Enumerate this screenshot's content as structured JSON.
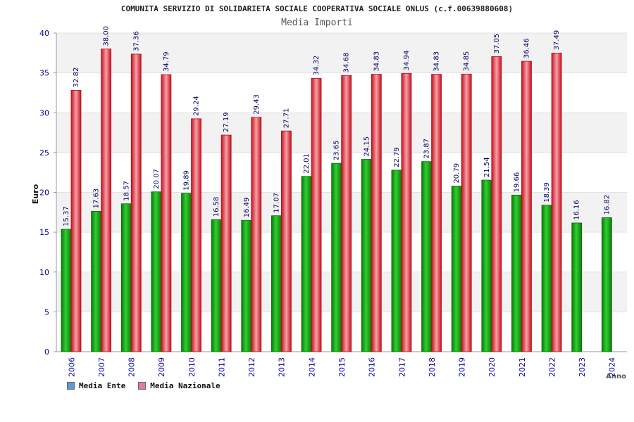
{
  "title": "COMUNITA SERVIZIO DI SOLIDARIETA SOCIALE COOPERATIVA SOCIALE ONLUS (c.f.00639880608)",
  "subtitle": "Media Importi",
  "colors": {
    "ente": "#1fa31f",
    "nazionale": "#e8303a",
    "legend_ente": "#5b9bd5",
    "legend_nazionale": "#e07aa8",
    "axis_text": "#0000aa",
    "band": "#f2f2f2"
  },
  "chart_data": {
    "type": "bar",
    "title": "COMUNITA SERVIZIO DI SOLIDARIETA SOCIALE COOPERATIVA SOCIALE ONLUS (c.f.00639880608)",
    "subtitle": "Media Importi",
    "xlabel": "Anno",
    "ylabel": "Euro",
    "ylim": [
      0,
      40
    ],
    "yticks": [
      0,
      5,
      10,
      15,
      20,
      25,
      30,
      35,
      40
    ],
    "grid": true,
    "legend_position": "bottom-left",
    "categories": [
      "2006",
      "2007",
      "2008",
      "2009",
      "2010",
      "2011",
      "2012",
      "2013",
      "2014",
      "2015",
      "2016",
      "2017",
      "2018",
      "2019",
      "2020",
      "2021",
      "2022",
      "2023",
      "2024"
    ],
    "series": [
      {
        "name": "Media Ente",
        "values": [
          15.37,
          17.63,
          18.57,
          20.07,
          19.89,
          16.58,
          16.49,
          17.07,
          22.01,
          23.65,
          24.15,
          22.79,
          23.87,
          20.79,
          21.54,
          19.66,
          18.39,
          16.16,
          16.82
        ],
        "labels": [
          "15.37",
          "17.63",
          "18.57",
          "20.07",
          "19.89",
          "16.58",
          "16.49",
          "17.07",
          "22.01",
          "23.65",
          "24.15",
          "22.79",
          "23.87",
          "20.79",
          "21.54",
          "19.66",
          "18.39",
          "16.16",
          "16.82"
        ]
      },
      {
        "name": "Media Nazionale",
        "values": [
          32.82,
          38.0,
          37.36,
          34.79,
          29.24,
          27.19,
          29.43,
          27.71,
          34.32,
          34.68,
          34.83,
          34.94,
          34.83,
          34.85,
          37.05,
          36.46,
          37.49,
          null,
          null
        ],
        "labels": [
          "32.82",
          "38.00",
          "37.36",
          "34.79",
          "29.24",
          "27.19",
          "29.43",
          "27.71",
          "34.32",
          "34.68",
          "34.83",
          "34.94",
          "34.83",
          "34.85",
          "37.05",
          "36.46",
          "37.49",
          "",
          ""
        ]
      }
    ]
  }
}
